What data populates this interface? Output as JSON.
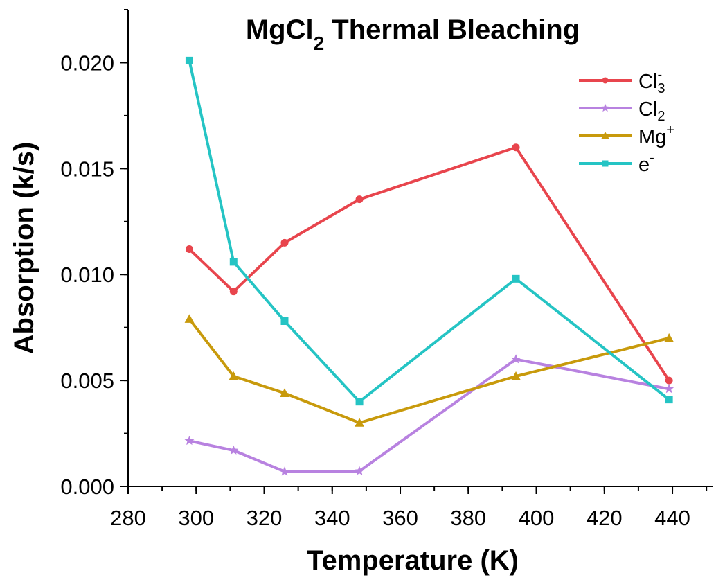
{
  "chart_data": {
    "type": "line",
    "title_main": "MgCl",
    "title_sub": "2",
    "title_rest": "  Thermal Bleaching",
    "xlabel": "Temperature (K)",
    "ylabel": "Absorption (k/s)",
    "xlim": [
      280,
      452
    ],
    "ylim": [
      0,
      0.0225
    ],
    "x_ticks": [
      280,
      300,
      320,
      340,
      360,
      380,
      400,
      420,
      440
    ],
    "x_tick_labels": [
      "280",
      "300",
      "320",
      "340",
      "360",
      "380",
      "400",
      "420",
      "440"
    ],
    "y_ticks": [
      0,
      0.005,
      0.01,
      0.015,
      0.02
    ],
    "y_tick_labels": [
      "0.000",
      "0.005",
      "0.010",
      "0.015",
      "0.020"
    ],
    "x_minor_step": 10,
    "y_minor_step": 0.0025,
    "grid": false,
    "legend_position": "top-right",
    "x": [
      298,
      311,
      326,
      348,
      394,
      439
    ],
    "series": [
      {
        "name": "Cl",
        "sub": "3",
        "sup": "-",
        "color": "#e8454d",
        "marker": "circle",
        "values": [
          0.0112,
          0.0092,
          0.0115,
          0.01355,
          0.016,
          0.005
        ]
      },
      {
        "name": "Cl",
        "sub": "2",
        "sup": "",
        "color": "#b882e0",
        "marker": "star",
        "values": [
          0.00215,
          0.0017,
          0.0007,
          0.00072,
          0.006,
          0.0046
        ]
      },
      {
        "name": "Mg",
        "sub": "",
        "sup": "+",
        "color": "#c89a0c",
        "marker": "triangle",
        "values": [
          0.0079,
          0.0052,
          0.0044,
          0.003,
          0.0052,
          0.007
        ]
      },
      {
        "name": "e",
        "sub": "",
        "sup": "-",
        "color": "#25c4c4",
        "marker": "square",
        "values": [
          0.0201,
          0.0106,
          0.0078,
          0.004,
          0.0098,
          0.0041
        ]
      }
    ]
  }
}
